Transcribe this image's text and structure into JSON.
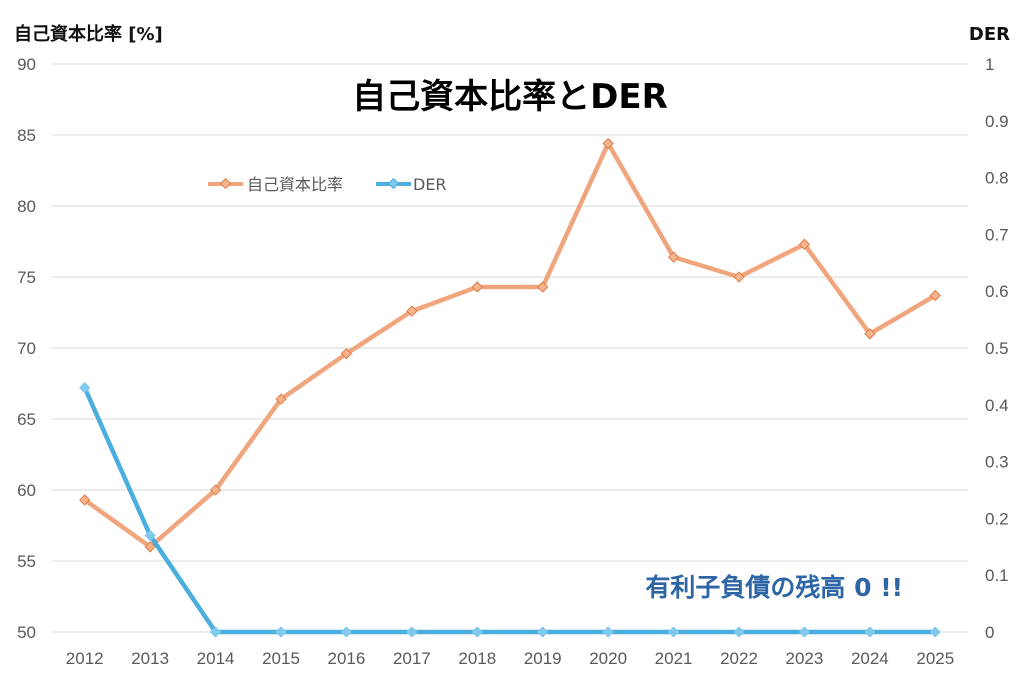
{
  "chart_data": {
    "type": "line",
    "title": "自己資本比率とDER",
    "ylabel_left": "自己資本比率 [%]",
    "ylabel_right": "DER",
    "xlabel": "",
    "categories": [
      "2012",
      "2013",
      "2014",
      "2015",
      "2016",
      "2017",
      "2018",
      "2019",
      "2020",
      "2021",
      "2022",
      "2023",
      "2024",
      "2025"
    ],
    "y_left": {
      "min": 50,
      "max": 90,
      "step": 5,
      "ticks": [
        "50",
        "55",
        "60",
        "65",
        "70",
        "75",
        "80",
        "85",
        "90"
      ]
    },
    "y_right": {
      "min": 0,
      "max": 1,
      "step": 0.1,
      "ticks": [
        "0",
        "0.1",
        "0.2",
        "0.3",
        "0.4",
        "0.5",
        "0.6",
        "0.7",
        "0.8",
        "0.9",
        "1"
      ]
    },
    "grid": true,
    "legend_position": "top-left",
    "series": [
      {
        "name": "自己資本比率",
        "axis": "left",
        "color": "#f0a57c",
        "marker_color": "#e07b45",
        "values": [
          59.3,
          56.0,
          60.0,
          66.4,
          69.6,
          72.6,
          74.3,
          74.3,
          84.4,
          76.4,
          75.0,
          77.3,
          71.0,
          73.7
        ]
      },
      {
        "name": "DER",
        "axis": "right",
        "color": "#4aaee0",
        "marker_color": "#7fc9ec",
        "values": [
          0.43,
          0.17,
          0,
          0,
          0,
          0,
          0,
          0,
          0,
          0,
          0,
          0,
          0,
          0
        ]
      }
    ],
    "annotations": [
      {
        "text": "有利子負債の残高 0 !!",
        "color": "#2e65a4",
        "position": "bottom-right"
      }
    ]
  }
}
